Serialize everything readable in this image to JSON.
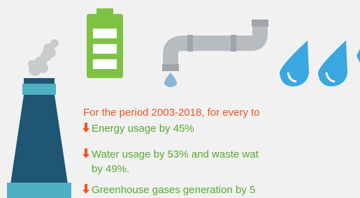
{
  "intro": "For the period 2003-2018, for every to",
  "items": [
    {
      "lines": [
        "Energy usage by 45%"
      ]
    },
    {
      "lines": [
        "Water usage by 53% and waste wat",
        "by 49%."
      ]
    },
    {
      "lines": [
        "Greenhouse gases generation by 5"
      ]
    }
  ]
}
